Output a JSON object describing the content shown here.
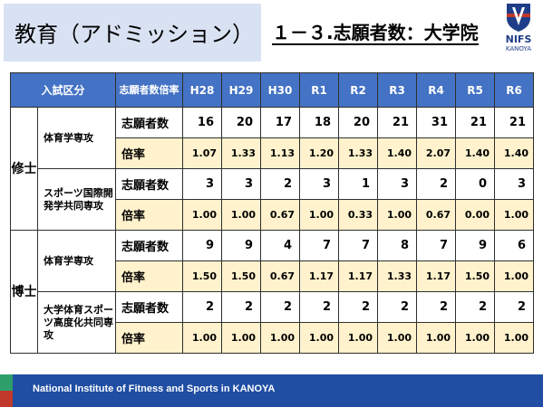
{
  "header": {
    "title": "教育（アドミッション）",
    "subtitle": "１－３.志願者数：大学院",
    "logo_text": "NIFS",
    "logo_subtext": "KANOYA"
  },
  "table": {
    "col_headers": {
      "category": "入試区分",
      "metric": "志願者数倍率",
      "years": [
        "H28",
        "H29",
        "H30",
        "R1",
        "R2",
        "R3",
        "R4",
        "R5",
        "R6"
      ]
    },
    "groups": [
      {
        "category": "修士",
        "majors": [
          {
            "name": "体育学専攻",
            "applicants_label": "志願者数",
            "applicants": [
              "16",
              "20",
              "17",
              "18",
              "20",
              "21",
              "31",
              "21",
              "21"
            ],
            "ratio_label": "倍率",
            "ratio": [
              "1.07",
              "1.33",
              "1.13",
              "1.20",
              "1.33",
              "1.40",
              "2.07",
              "1.40",
              "1.40"
            ]
          },
          {
            "name": "スポーツ国際開発学共同専攻",
            "applicants_label": "志願者数",
            "applicants": [
              "3",
              "3",
              "2",
              "3",
              "1",
              "3",
              "2",
              "0",
              "3"
            ],
            "ratio_label": "倍率",
            "ratio": [
              "1.00",
              "1.00",
              "0.67",
              "1.00",
              "0.33",
              "1.00",
              "0.67",
              "0.00",
              "1.00"
            ]
          }
        ]
      },
      {
        "category": "博士",
        "majors": [
          {
            "name": "体育学専攻",
            "applicants_label": "志願者数",
            "applicants": [
              "9",
              "9",
              "4",
              "7",
              "7",
              "8",
              "7",
              "9",
              "6"
            ],
            "ratio_label": "倍率",
            "ratio": [
              "1.50",
              "1.50",
              "0.67",
              "1.17",
              "1.17",
              "1.33",
              "1.17",
              "1.50",
              "1.00"
            ]
          },
          {
            "name": "大学体育スポーツ高度化共同専攻",
            "applicants_label": "志願者数",
            "applicants": [
              "2",
              "2",
              "2",
              "2",
              "2",
              "2",
              "2",
              "2",
              "2"
            ],
            "ratio_label": "倍率",
            "ratio": [
              "1.00",
              "1.00",
              "1.00",
              "1.00",
              "1.00",
              "1.00",
              "1.00",
              "1.00",
              "1.00"
            ]
          }
        ]
      }
    ]
  },
  "footer": {
    "text": "National Institute of Fitness and Sports in KANOYA"
  },
  "colors": {
    "header_bg": "#4472c4",
    "ratio_row_bg": "#fff2cc",
    "title_bg": "#d9e2f3",
    "footer_bg": "#1f4ea3",
    "footer_green": "#2e9e6a",
    "footer_red": "#c0392b"
  }
}
